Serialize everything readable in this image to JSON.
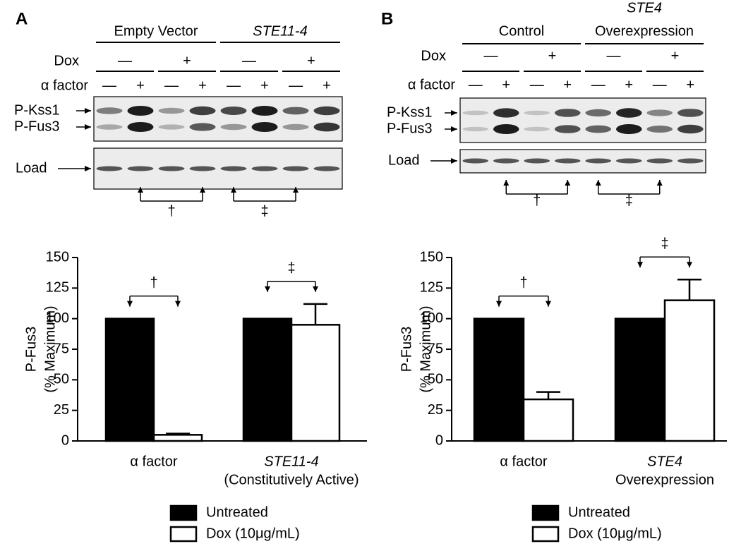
{
  "panels": [
    {
      "label": "A",
      "blot": {
        "groups": [
          [
            "Empty Vector"
          ],
          [
            "STE11-4"
          ]
        ],
        "dox_label": "Dox",
        "dox": [
          "—",
          "+",
          "—",
          "+"
        ],
        "alpha_label": "α factor",
        "alpha": [
          "—",
          "+",
          "—",
          "+",
          "—",
          "+",
          "—",
          "+"
        ],
        "bands": [
          "P-Kss1",
          "P-Fus3"
        ],
        "load": "Load",
        "brackets": [
          "†",
          "‡"
        ]
      }
    },
    {
      "label": "B",
      "blot": {
        "groups": [
          [
            "Control"
          ],
          [
            "STE4",
            "Overexpression"
          ]
        ],
        "dox_label": "Dox",
        "dox": [
          "—",
          "+",
          "—",
          "+"
        ],
        "alpha_label": "α factor",
        "alpha": [
          "—",
          "+",
          "—",
          "+",
          "—",
          "+",
          "—",
          "+"
        ],
        "bands": [
          "P-Kss1",
          "P-Fus3"
        ],
        "load": "Load",
        "brackets": [
          "†",
          "‡"
        ]
      }
    }
  ],
  "chart_data": [
    {
      "type": "bar",
      "y_label": [
        "P-Fus3",
        "(% Maximum)"
      ],
      "categories": [
        [
          "α factor"
        ],
        [
          "STE11-4",
          "(Constitutively Active)"
        ]
      ],
      "series": [
        {
          "name": "Untreated",
          "color": "#000000",
          "values": [
            100,
            100
          ]
        },
        {
          "name": "Dox (10μg/mL)",
          "color": "#ffffff",
          "values": [
            5,
            95
          ],
          "errors": [
            1,
            17
          ]
        }
      ],
      "ylim": [
        0,
        150
      ],
      "yticks": [
        0,
        25,
        50,
        75,
        100,
        125,
        150
      ],
      "annotations": [
        "†",
        "‡"
      ]
    },
    {
      "type": "bar",
      "y_label": [
        "P-Fus3",
        "(% Maximum)"
      ],
      "categories": [
        [
          "α factor"
        ],
        [
          "STE4",
          "Overexpression"
        ]
      ],
      "series": [
        {
          "name": "Untreated",
          "color": "#000000",
          "values": [
            100,
            100
          ]
        },
        {
          "name": "Dox (10μg/mL)",
          "color": "#ffffff",
          "values": [
            34,
            115
          ],
          "errors": [
            6,
            17
          ]
        }
      ],
      "ylim": [
        0,
        150
      ],
      "yticks": [
        0,
        25,
        50,
        75,
        100,
        125,
        150
      ],
      "annotations": [
        "†",
        "‡"
      ]
    }
  ]
}
